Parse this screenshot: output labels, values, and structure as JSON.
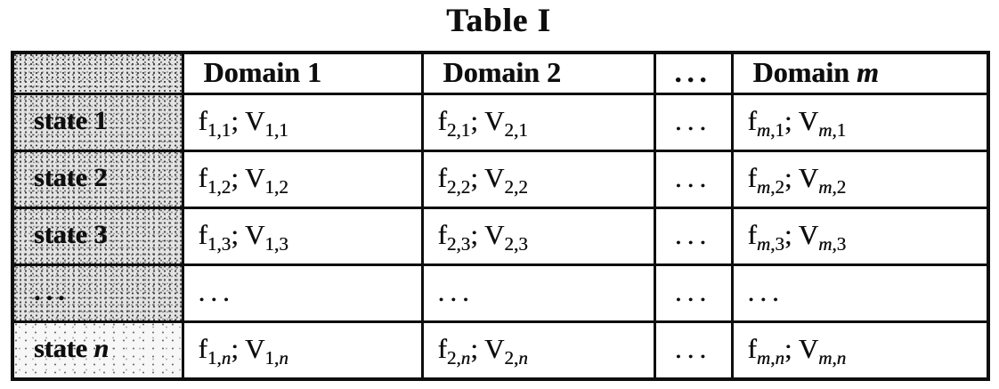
{
  "title": "Table I",
  "colors": {
    "ink": "#0e0e0e",
    "cell_shading": "#e3e3e3",
    "background": "#ffffff"
  },
  "table": {
    "header": [
      {
        "shaded": true,
        "segs": []
      },
      {
        "segs": [
          {
            "t": "Domain 1"
          }
        ]
      },
      {
        "segs": [
          {
            "t": "Domain 2"
          }
        ]
      },
      {
        "dots": true,
        "segs": [
          {
            "t": "..."
          }
        ]
      },
      {
        "segs": [
          {
            "t": "Domain "
          },
          {
            "t": "m",
            "i": true
          }
        ]
      }
    ],
    "rows": [
      {
        "label": {
          "shade": "full",
          "segs": [
            {
              "t": "state 1"
            }
          ]
        },
        "cells": [
          {
            "segs": [
              {
                "t": "f"
              },
              {
                "t": "1,1",
                "sub": true
              },
              {
                "t": "; V"
              },
              {
                "t": "1,1",
                "sub": true
              }
            ]
          },
          {
            "segs": [
              {
                "t": "f"
              },
              {
                "t": "2,1",
                "sub": true
              },
              {
                "t": "; V"
              },
              {
                "t": "2,1",
                "sub": true
              }
            ]
          },
          {
            "dots": true,
            "segs": [
              {
                "t": "..."
              }
            ]
          },
          {
            "segs": [
              {
                "t": "f"
              },
              {
                "t": "m",
                "sub": true,
                "i": true
              },
              {
                "t": ",1",
                "sub": true
              },
              {
                "t": "; V"
              },
              {
                "t": "m",
                "sub": true,
                "i": true
              },
              {
                "t": ",1",
                "sub": true
              }
            ]
          }
        ]
      },
      {
        "label": {
          "shade": "full",
          "segs": [
            {
              "t": "state 2"
            }
          ]
        },
        "cells": [
          {
            "segs": [
              {
                "t": "f"
              },
              {
                "t": "1,2",
                "sub": true
              },
              {
                "t": "; V"
              },
              {
                "t": "1,2",
                "sub": true
              }
            ]
          },
          {
            "segs": [
              {
                "t": "f"
              },
              {
                "t": "2,2",
                "sub": true
              },
              {
                "t": "; V"
              },
              {
                "t": "2,2",
                "sub": true
              }
            ]
          },
          {
            "dots": true,
            "segs": [
              {
                "t": "..."
              }
            ]
          },
          {
            "segs": [
              {
                "t": "f"
              },
              {
                "t": "m",
                "sub": true,
                "i": true
              },
              {
                "t": ",2",
                "sub": true
              },
              {
                "t": "; V"
              },
              {
                "t": "m",
                "sub": true,
                "i": true
              },
              {
                "t": ",2",
                "sub": true
              }
            ]
          }
        ]
      },
      {
        "label": {
          "shade": "full",
          "segs": [
            {
              "t": "state 3"
            }
          ]
        },
        "cells": [
          {
            "segs": [
              {
                "t": "f"
              },
              {
                "t": "1,3",
                "sub": true
              },
              {
                "t": "; V"
              },
              {
                "t": "1,3",
                "sub": true
              }
            ]
          },
          {
            "segs": [
              {
                "t": "f"
              },
              {
                "t": "2,3",
                "sub": true
              },
              {
                "t": "; V"
              },
              {
                "t": "2,3",
                "sub": true
              }
            ]
          },
          {
            "dots": true,
            "segs": [
              {
                "t": "..."
              }
            ]
          },
          {
            "segs": [
              {
                "t": "f"
              },
              {
                "t": "m",
                "sub": true,
                "i": true
              },
              {
                "t": ",3",
                "sub": true
              },
              {
                "t": "; V"
              },
              {
                "t": "m",
                "sub": true,
                "i": true
              },
              {
                "t": ",3",
                "sub": true
              }
            ]
          }
        ]
      },
      {
        "label": {
          "shade": "full",
          "dots": true,
          "segs": [
            {
              "t": "..."
            }
          ]
        },
        "cells": [
          {
            "dots": true,
            "segs": [
              {
                "t": "..."
              }
            ]
          },
          {
            "dots": true,
            "segs": [
              {
                "t": "..."
              }
            ]
          },
          {
            "dots": true,
            "segs": [
              {
                "t": "..."
              }
            ]
          },
          {
            "dots": true,
            "segs": [
              {
                "t": "..."
              }
            ]
          }
        ]
      },
      {
        "label": {
          "shade": "light",
          "segs": [
            {
              "t": "state "
            },
            {
              "t": "n",
              "i": true
            }
          ]
        },
        "cells": [
          {
            "segs": [
              {
                "t": "f"
              },
              {
                "t": "1,",
                "sub": true
              },
              {
                "t": "n",
                "sub": true,
                "i": true
              },
              {
                "t": "; V"
              },
              {
                "t": "1,",
                "sub": true
              },
              {
                "t": "n",
                "sub": true,
                "i": true
              }
            ]
          },
          {
            "segs": [
              {
                "t": "f"
              },
              {
                "t": "2,",
                "sub": true
              },
              {
                "t": "n",
                "sub": true,
                "i": true
              },
              {
                "t": "; V"
              },
              {
                "t": "2,",
                "sub": true
              },
              {
                "t": "n",
                "sub": true,
                "i": true
              }
            ]
          },
          {
            "dots": true,
            "segs": [
              {
                "t": "..."
              }
            ]
          },
          {
            "segs": [
              {
                "t": "f"
              },
              {
                "t": "m",
                "sub": true,
                "i": true
              },
              {
                "t": ",",
                "sub": true
              },
              {
                "t": "n",
                "sub": true,
                "i": true
              },
              {
                "t": "; V"
              },
              {
                "t": "m",
                "sub": true,
                "i": true
              },
              {
                "t": ",",
                "sub": true
              },
              {
                "t": "n",
                "sub": true,
                "i": true
              }
            ]
          }
        ]
      }
    ]
  }
}
